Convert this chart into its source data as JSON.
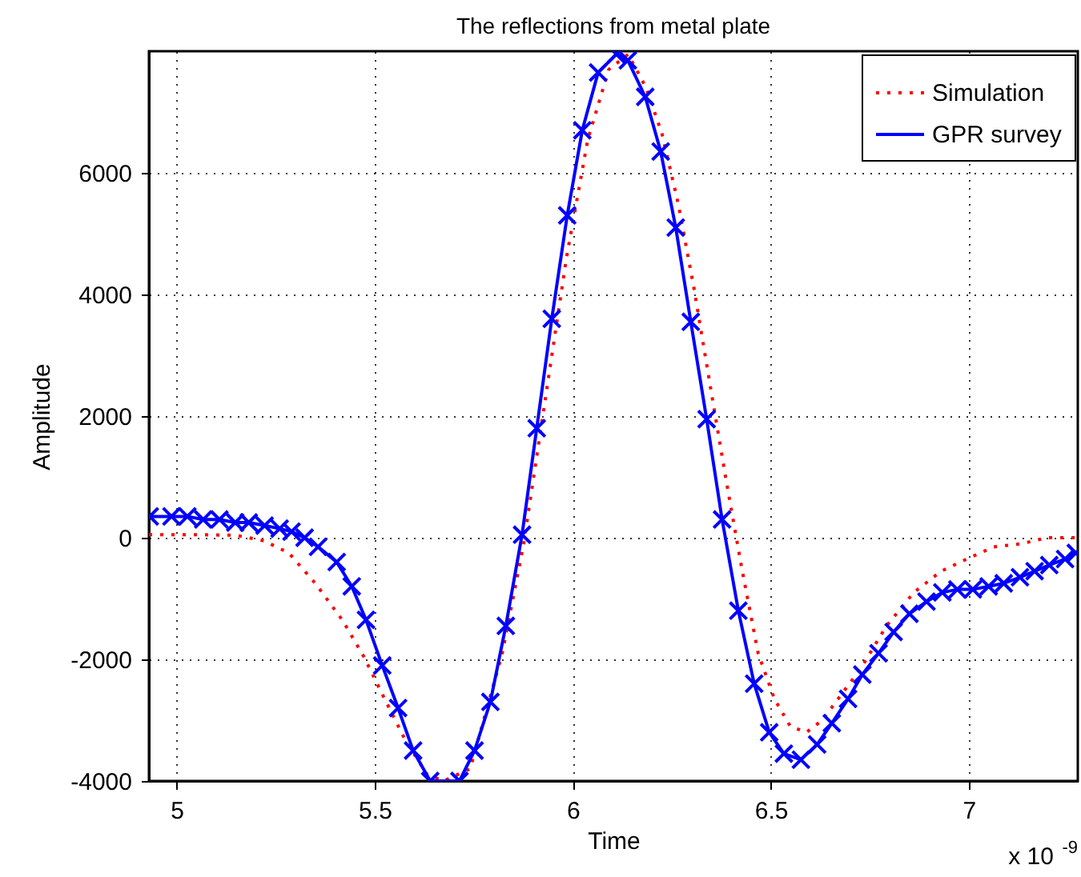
{
  "chart_data": {
    "type": "line",
    "title": "The reflections from metal plate",
    "xlabel": "Time",
    "ylabel": "Amplitude",
    "annotations": [
      "x 10$^{-9}$"
    ],
    "xlim": [
      4.93,
      7.275
    ],
    "xticks": [
      5,
      5.5,
      6,
      6.5,
      7
    ],
    "ylim": [
      -4000,
      8000
    ],
    "yticks": [
      -4000,
      -2000,
      0,
      2000,
      4000,
      6000
    ],
    "grid": true,
    "legend": "top right",
    "series": [
      {
        "name": "Simulation",
        "color": "#ff0000",
        "line_style": "dotted",
        "marker": "none",
        "x": [
          4.93,
          5.05,
          5.15,
          5.22,
          5.283,
          5.35,
          5.418,
          5.472,
          5.525,
          5.579,
          5.633,
          5.674,
          5.741,
          5.822,
          5.876,
          5.93,
          5.984,
          6.038,
          6.091,
          6.14,
          6.185,
          6.225,
          6.266,
          6.306,
          6.347,
          6.387,
          6.428,
          6.468,
          6.509,
          6.549,
          6.59,
          6.63,
          6.67,
          6.727,
          6.792,
          6.861,
          6.93,
          6.995,
          7.063,
          7.132,
          7.197,
          7.274
        ],
        "values": [
          50,
          50,
          40,
          -50,
          -250,
          -750,
          -1350,
          -1950,
          -2650,
          -3350,
          -3900,
          -4000,
          -3800,
          -1900,
          -100,
          2250,
          4600,
          6550,
          7700,
          7950,
          7400,
          6650,
          5500,
          4100,
          2500,
          950,
          -550,
          -1900,
          -2650,
          -3100,
          -3200,
          -3000,
          -2650,
          -2150,
          -1450,
          -900,
          -550,
          -350,
          -150,
          -100,
          0,
          0
        ]
      },
      {
        "name": "GPR survey",
        "color": "#0000ff",
        "line_style": "solid",
        "marker": "cross",
        "x": [
          4.932,
          4.987,
          5.027,
          5.067,
          5.108,
          5.148,
          5.182,
          5.222,
          5.26,
          5.29,
          5.323,
          5.357,
          5.404,
          5.442,
          5.478,
          5.519,
          5.559,
          5.597,
          5.64,
          5.714,
          5.752,
          5.792,
          5.831,
          5.872,
          5.909,
          5.947,
          5.986,
          6.024,
          6.064,
          6.11,
          6.139,
          6.183,
          6.222,
          6.26,
          6.298,
          6.338,
          6.377,
          6.418,
          6.458,
          6.496,
          6.533,
          6.576,
          6.617,
          6.654,
          6.695,
          6.731,
          6.772,
          6.81,
          6.85,
          6.893,
          6.933,
          6.971,
          7.01,
          7.05,
          7.088,
          7.129,
          7.166,
          7.203,
          7.243,
          7.27
        ],
        "values": [
          350,
          350,
          350,
          300,
          300,
          250,
          250,
          200,
          150,
          100,
          0,
          -150,
          -400,
          -800,
          -1350,
          -2100,
          -2800,
          -3500,
          -4000,
          -4000,
          -3500,
          -2700,
          -1450,
          50,
          1800,
          3600,
          5300,
          6700,
          7650,
          7950,
          7850,
          7250,
          6350,
          5100,
          3550,
          1950,
          300,
          -1200,
          -2400,
          -3200,
          -3550,
          -3650,
          -3400,
          -3050,
          -2650,
          -2250,
          -1900,
          -1550,
          -1250,
          -1050,
          -900,
          -850,
          -850,
          -800,
          -750,
          -650,
          -550,
          -450,
          -350,
          -250
        ]
      }
    ]
  }
}
